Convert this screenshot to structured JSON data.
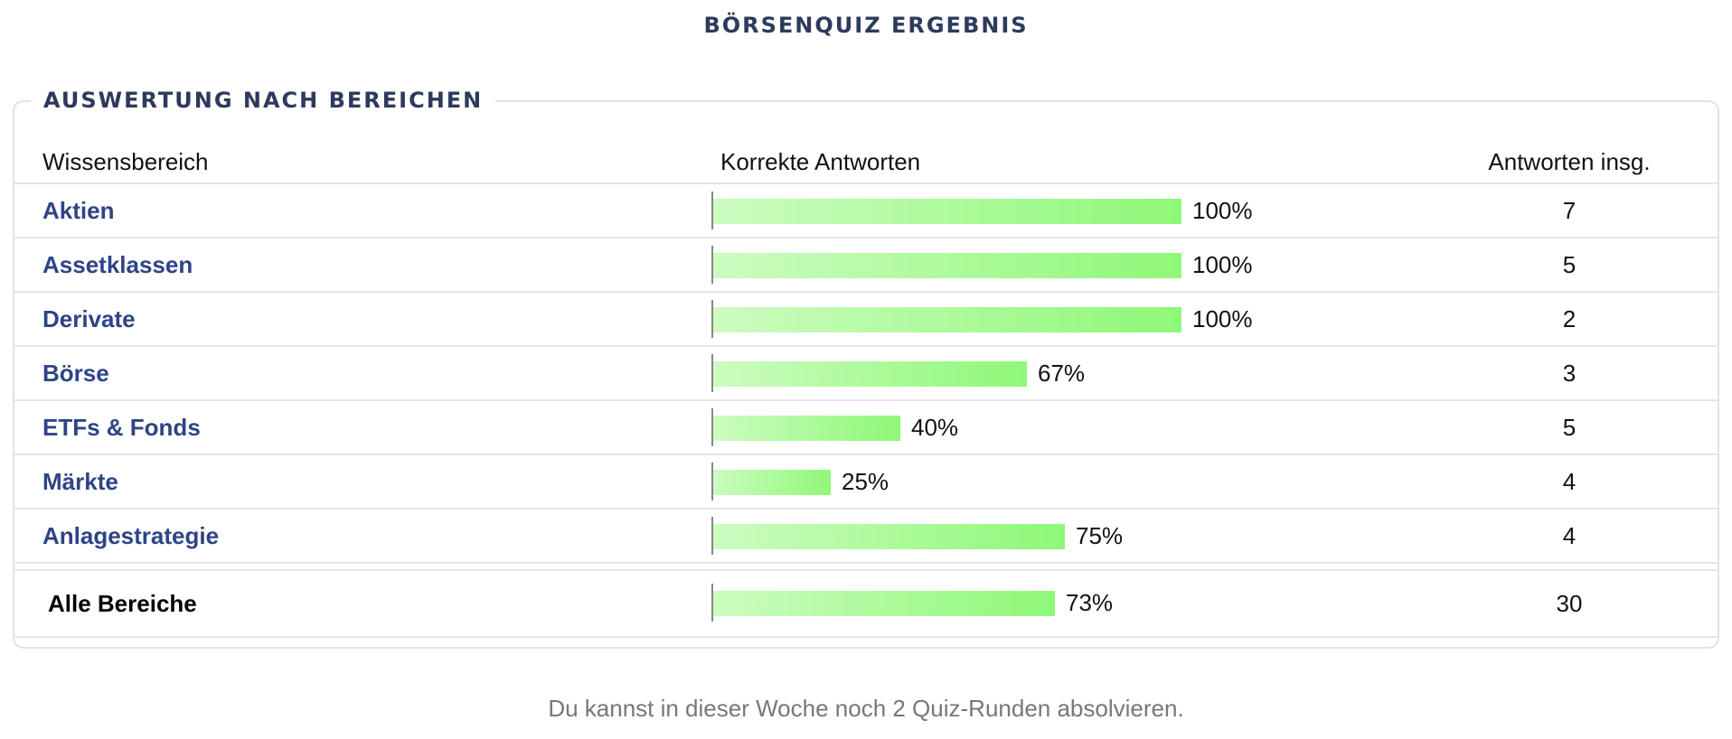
{
  "header": {
    "title": "BÖRSENQUIZ ERGEBNIS"
  },
  "panel": {
    "legend": "AUSWERTUNG NACH BEREICHEN"
  },
  "table": {
    "columns": {
      "area": "Wissensbereich",
      "correct": "Korrekte Antworten",
      "total": "Antworten insg."
    },
    "rows": [
      {
        "area": "Aktien",
        "percent": 100,
        "percent_label": "100%",
        "count": "7"
      },
      {
        "area": "Assetklassen",
        "percent": 100,
        "percent_label": "100%",
        "count": "5"
      },
      {
        "area": "Derivate",
        "percent": 100,
        "percent_label": "100%",
        "count": "2"
      },
      {
        "area": "Börse",
        "percent": 67,
        "percent_label": "67%",
        "count": "3"
      },
      {
        "area": "ETFs & Fonds",
        "percent": 40,
        "percent_label": "40%",
        "count": "5"
      },
      {
        "area": "Märkte",
        "percent": 25,
        "percent_label": "25%",
        "count": "4"
      },
      {
        "area": "Anlagestrategie",
        "percent": 75,
        "percent_label": "75%",
        "count": "4"
      }
    ],
    "total": {
      "area": "Alle Bereiche",
      "percent": 73,
      "percent_label": "73%",
      "count": "30"
    }
  },
  "footer": {
    "note": "Du kannst in dieser Woche noch 2 Quiz-Runden absolvieren."
  },
  "colors": {
    "title": "#2d3a5c",
    "link": "#2e4486",
    "bar_start": "#ccfcc0",
    "bar_end": "#8ff878"
  }
}
